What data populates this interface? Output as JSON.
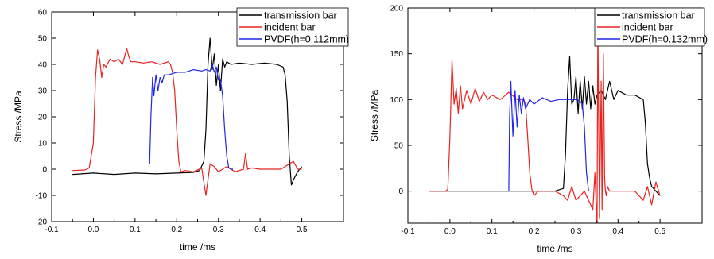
{
  "chart_data": [
    {
      "type": "line",
      "xlabel": "time /ms",
      "ylabel": "Stress /MPa",
      "xlim": [
        -0.1,
        0.6
      ],
      "ylim": [
        -20,
        60
      ],
      "xticks": [
        -0.1,
        0.0,
        0.1,
        0.2,
        0.3,
        0.4,
        0.5
      ],
      "xtick_labels": [
        "-0.1",
        "0.0",
        "0.1",
        "0.2",
        "0.3",
        "0.4",
        "0.5"
      ],
      "yticks": [
        -20,
        -10,
        0,
        10,
        20,
        30,
        40,
        50,
        60
      ],
      "ytick_labels": [
        "-20",
        "-10",
        "0",
        "10",
        "20",
        "30",
        "40",
        "50",
        "60"
      ],
      "grid": false,
      "legend_position": "top-right",
      "series": [
        {
          "name": "transmission bar",
          "color": "#000000",
          "x": [
            -0.05,
            0.0,
            0.05,
            0.1,
            0.15,
            0.2,
            0.24,
            0.255,
            0.265,
            0.27,
            0.275,
            0.28,
            0.285,
            0.29,
            0.295,
            0.3,
            0.305,
            0.31,
            0.315,
            0.32,
            0.33,
            0.35,
            0.38,
            0.41,
            0.44,
            0.455,
            0.46,
            0.465,
            0.47,
            0.475,
            0.48,
            0.49,
            0.5
          ],
          "y": [
            -2,
            -1.5,
            -2,
            -1.5,
            -1.8,
            -1.5,
            -1.2,
            -0.5,
            3,
            15,
            40,
            50,
            38,
            44,
            32,
            40,
            30,
            42,
            39,
            41,
            40,
            40.5,
            40,
            40.5,
            40,
            39,
            36,
            26,
            5,
            -6,
            -4,
            -1,
            1
          ]
        },
        {
          "name": "incident bar",
          "color": "#e8231f",
          "x": [
            -0.05,
            -0.02,
            -0.01,
            0.0,
            0.005,
            0.01,
            0.015,
            0.02,
            0.025,
            0.03,
            0.04,
            0.05,
            0.06,
            0.07,
            0.08,
            0.085,
            0.09,
            0.1,
            0.12,
            0.14,
            0.16,
            0.18,
            0.185,
            0.19,
            0.195,
            0.2,
            0.205,
            0.21,
            0.22,
            0.24,
            0.26,
            0.265,
            0.27,
            0.275,
            0.28,
            0.29,
            0.3,
            0.32,
            0.34,
            0.36,
            0.365,
            0.37,
            0.38,
            0.4,
            0.45,
            0.47,
            0.48,
            0.49,
            0.5
          ],
          "y": [
            -0.5,
            -0.3,
            0.5,
            10,
            35,
            45.5,
            42,
            35,
            40,
            39,
            42,
            41,
            42,
            40,
            46,
            43,
            41,
            41,
            40.5,
            41,
            40,
            41,
            40,
            37,
            30,
            15,
            3,
            -1,
            -0.5,
            -1,
            0.5,
            -5,
            -10,
            -4,
            2,
            1,
            -1,
            1,
            -1,
            0,
            6,
            0,
            0.5,
            0,
            0,
            2,
            3,
            0,
            0
          ]
        },
        {
          "name": "PVDF(h=0.112mm)",
          "color": "#1f26e8",
          "x": [
            0.135,
            0.138,
            0.142,
            0.145,
            0.15,
            0.155,
            0.16,
            0.165,
            0.17,
            0.18,
            0.2,
            0.22,
            0.24,
            0.26,
            0.27,
            0.28,
            0.285,
            0.29,
            0.295,
            0.3,
            0.305,
            0.31,
            0.315,
            0.32,
            0.325,
            0.33,
            0.335
          ],
          "y": [
            2,
            20,
            35,
            28,
            36,
            30,
            35,
            33,
            36,
            36,
            37,
            37,
            38,
            37.5,
            38,
            37.5,
            40,
            37,
            39,
            34,
            34,
            28,
            15,
            5,
            0.5,
            0,
            0
          ]
        }
      ]
    },
    {
      "type": "line",
      "xlabel": "time /ms",
      "ylabel": "Stress /MPa",
      "xlim": [
        -0.1,
        0.6
      ],
      "ylim": [
        -35,
        200
      ],
      "xticks": [
        -0.1,
        0.0,
        0.1,
        0.2,
        0.3,
        0.4,
        0.5
      ],
      "xtick_labels": [
        "-0.1",
        "0.0",
        "0.1",
        "0.2",
        "0.3",
        "0.4",
        "0.5"
      ],
      "yticks": [
        0,
        50,
        100,
        150,
        200
      ],
      "ytick_labels": [
        "0",
        "50",
        "100",
        "150",
        "200"
      ],
      "grid": false,
      "legend_position": "top-right",
      "series": [
        {
          "name": "transmission bar",
          "color": "#000000",
          "x": [
            -0.05,
            0.0,
            0.05,
            0.1,
            0.15,
            0.2,
            0.25,
            0.27,
            0.275,
            0.28,
            0.285,
            0.29,
            0.295,
            0.3,
            0.305,
            0.31,
            0.315,
            0.32,
            0.325,
            0.33,
            0.335,
            0.34,
            0.345,
            0.35,
            0.36,
            0.37,
            0.38,
            0.39,
            0.4,
            0.42,
            0.44,
            0.46,
            0.465,
            0.47,
            0.475,
            0.48,
            0.49,
            0.5
          ],
          "y": [
            0,
            0,
            0,
            0,
            0,
            0,
            0,
            3,
            40,
            110,
            147,
            95,
            100,
            125,
            85,
            120,
            90,
            125,
            95,
            120,
            90,
            115,
            95,
            105,
            110,
            100,
            120,
            100,
            110,
            105,
            105,
            100,
            75,
            30,
            15,
            5,
            0,
            -5
          ]
        },
        {
          "name": "incident bar",
          "color": "#e8231f",
          "x": [
            -0.05,
            -0.01,
            -0.005,
            0.0,
            0.005,
            0.01,
            0.015,
            0.02,
            0.025,
            0.03,
            0.04,
            0.05,
            0.06,
            0.07,
            0.08,
            0.09,
            0.1,
            0.12,
            0.14,
            0.16,
            0.175,
            0.18,
            0.185,
            0.19,
            0.195,
            0.2,
            0.21,
            0.25,
            0.27,
            0.28,
            0.29,
            0.3,
            0.32,
            0.34,
            0.345,
            0.35,
            0.352,
            0.356,
            0.36,
            0.362,
            0.365,
            0.368,
            0.37,
            0.372,
            0.375,
            0.38,
            0.4,
            0.44,
            0.46,
            0.47,
            0.48,
            0.49,
            0.5
          ],
          "y": [
            0,
            0,
            2,
            60,
            143,
            95,
            112,
            85,
            115,
            90,
            110,
            95,
            112,
            98,
            108,
            100,
            105,
            100,
            108,
            100,
            100,
            95,
            60,
            20,
            2,
            -5,
            0,
            0,
            -5,
            -10,
            5,
            -10,
            0,
            -20,
            20,
            -40,
            185,
            -30,
            120,
            -20,
            150,
            15,
            0,
            -5,
            5,
            0,
            0,
            0,
            -10,
            5,
            -15,
            10,
            -5
          ]
        },
        {
          "name": "PVDF(h=0.132mm)",
          "color": "#1f26e8",
          "x": [
            0.14,
            0.142,
            0.145,
            0.15,
            0.155,
            0.16,
            0.165,
            0.17,
            0.175,
            0.18,
            0.19,
            0.2,
            0.22,
            0.24,
            0.26,
            0.28,
            0.3,
            0.31,
            0.315,
            0.32,
            0.325,
            0.33
          ],
          "y": [
            0,
            80,
            120,
            60,
            110,
            70,
            105,
            85,
            102,
            90,
            100,
            95,
            102,
            98,
            100,
            100,
            100,
            98,
            95,
            70,
            20,
            0
          ]
        }
      ]
    }
  ]
}
